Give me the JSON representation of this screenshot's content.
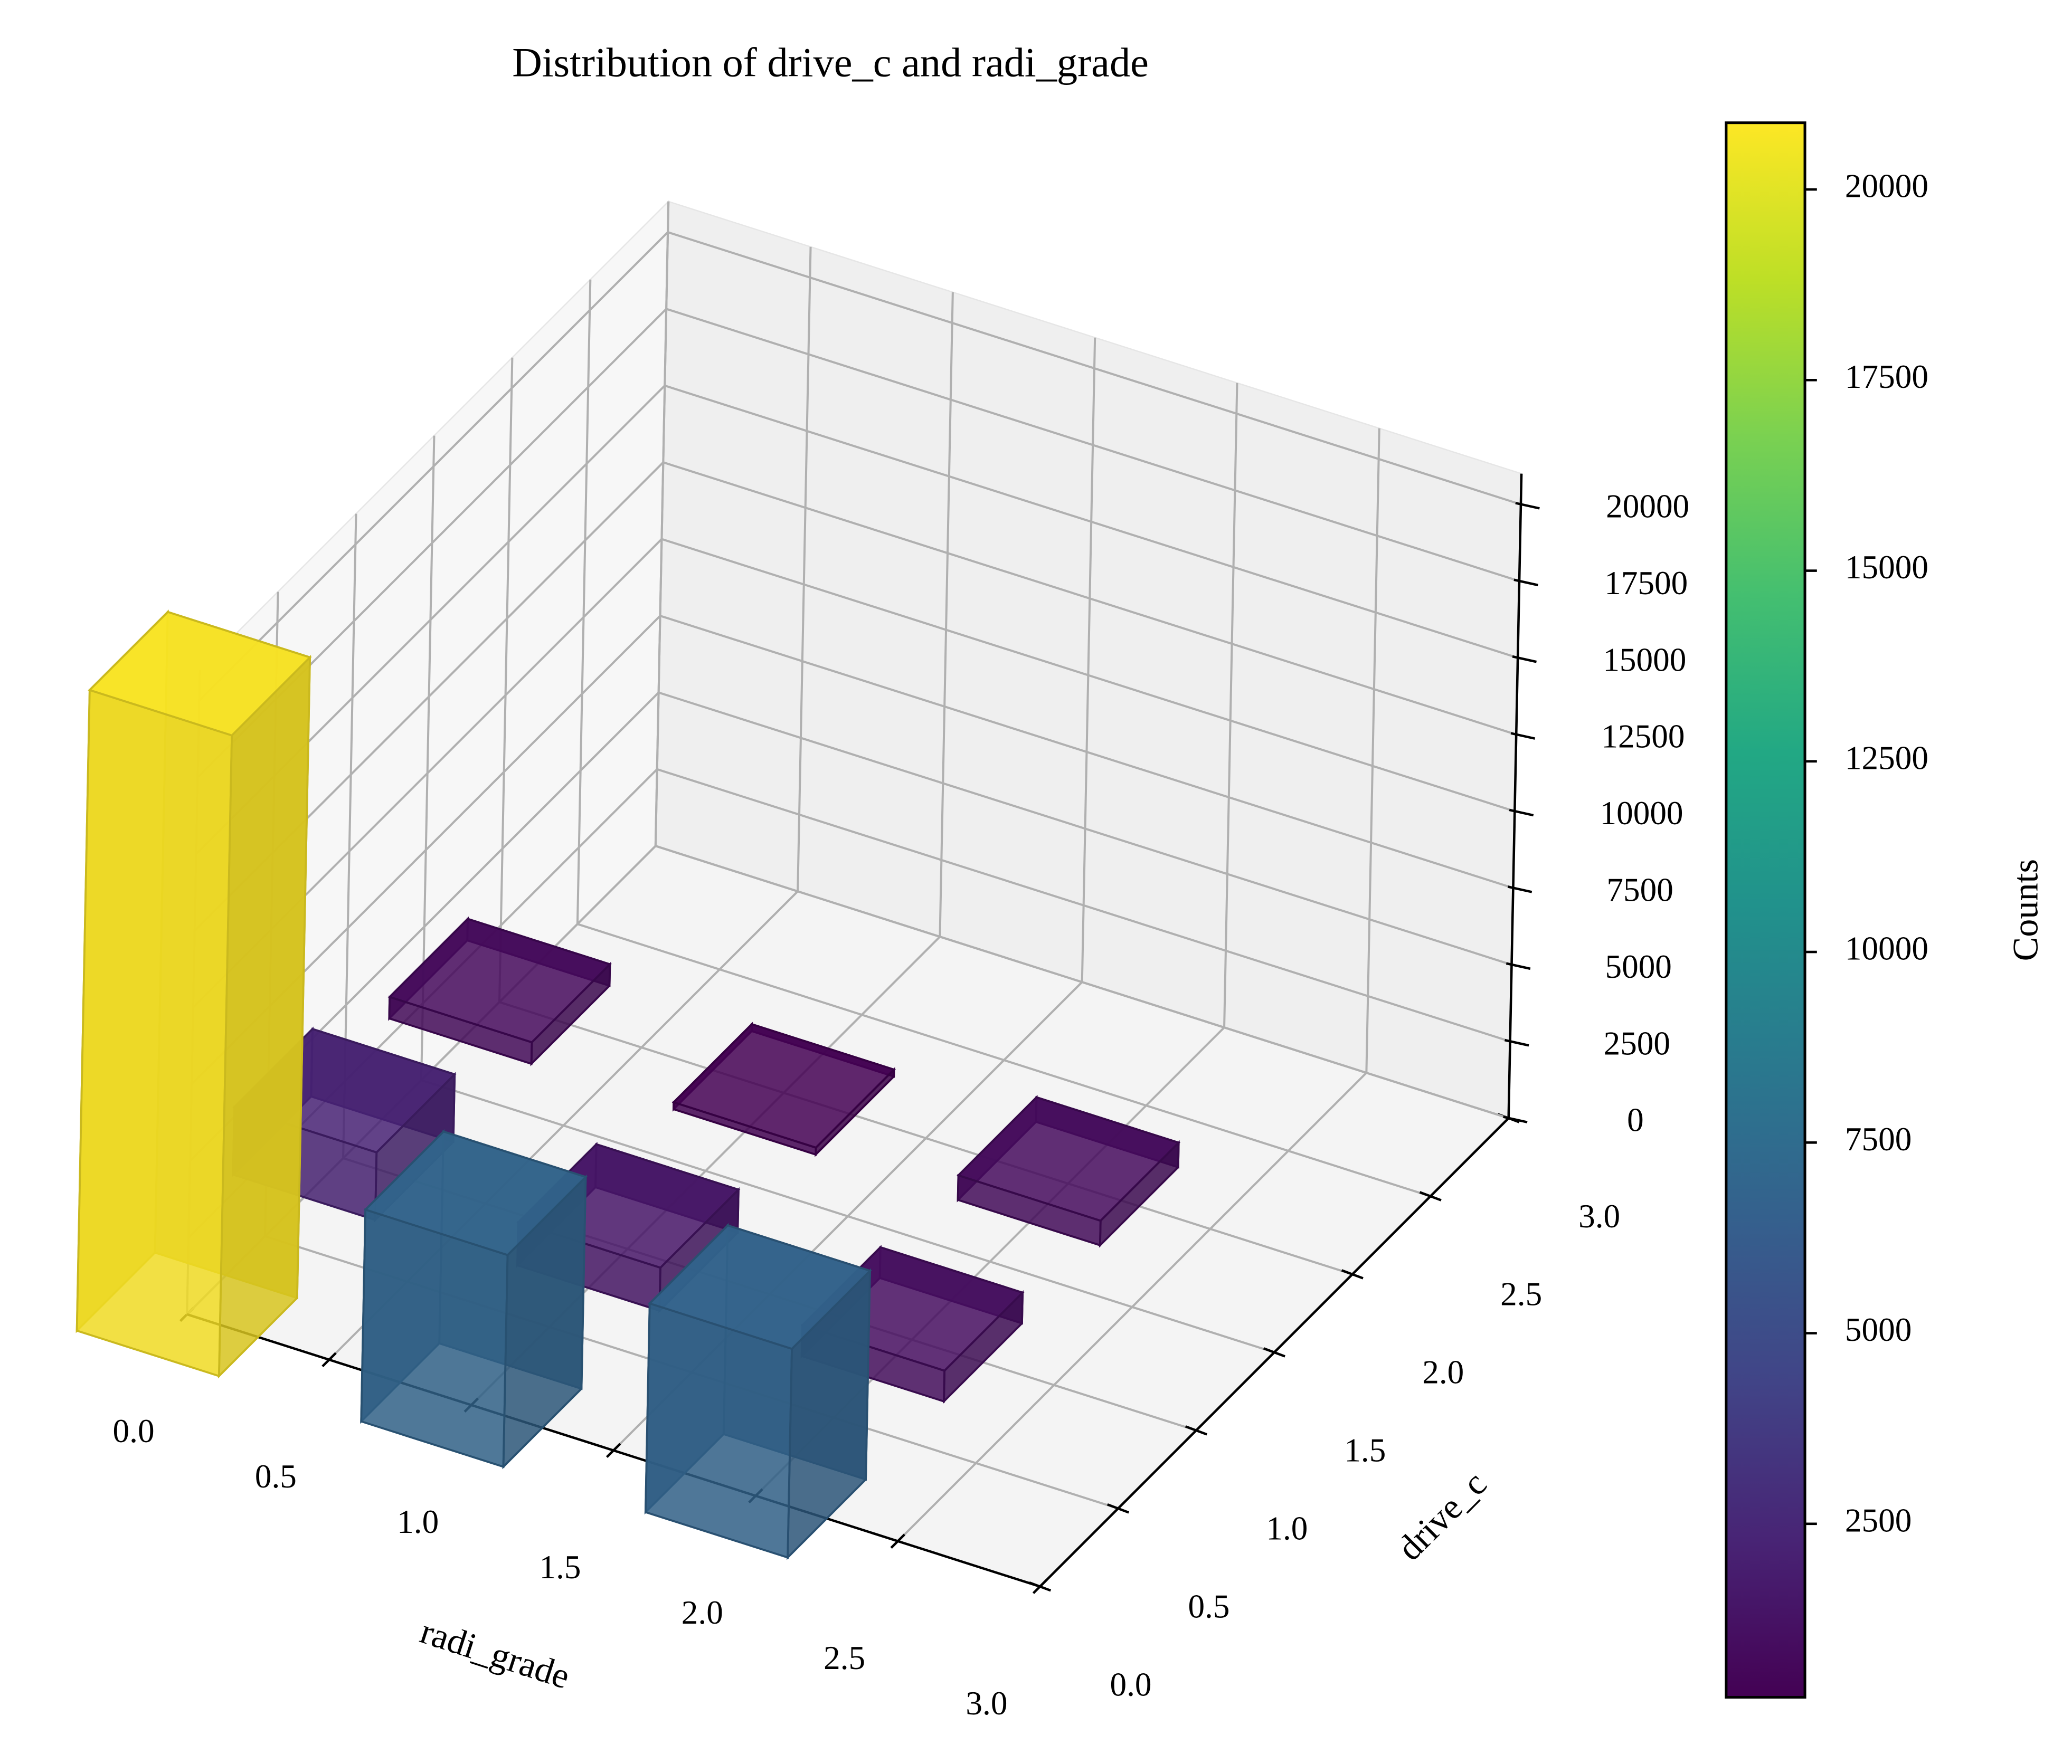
{
  "chart_data": {
    "type": "bar3d",
    "title": "Distribution of drive_c and radi_grade",
    "xlabel": "radi_grade",
    "ylabel": "drive_c",
    "x": [
      0,
      1,
      2,
      0,
      1,
      2,
      0,
      1,
      2
    ],
    "y": [
      0,
      0,
      0,
      1,
      1,
      1,
      2,
      2,
      2
    ],
    "values": [
      20875,
      6900,
      6800,
      2200,
      1400,
      1000,
      700,
      225,
      800
    ],
    "colormap": "viridis",
    "xlim": [
      0,
      3
    ],
    "xticks": [
      {
        "value": 0,
        "label": "0.0"
      },
      {
        "value": 0.5,
        "label": "0.5"
      },
      {
        "value": 1,
        "label": "1.0"
      },
      {
        "value": 1.5,
        "label": "1.5"
      },
      {
        "value": 2,
        "label": "2.0"
      },
      {
        "value": 2.5,
        "label": "2.5"
      },
      {
        "value": 3,
        "label": "3.0"
      }
    ],
    "ylim": [
      0,
      3
    ],
    "yticks": [
      {
        "value": 0,
        "label": "0.0"
      },
      {
        "value": 0.5,
        "label": "0.5"
      },
      {
        "value": 1,
        "label": "1.0"
      },
      {
        "value": 1.5,
        "label": "1.5"
      },
      {
        "value": 2,
        "label": "2.0"
      },
      {
        "value": 2.5,
        "label": "2.5"
      },
      {
        "value": 3,
        "label": "3.0"
      }
    ],
    "zlim": [
      0,
      21000
    ],
    "zticks": [
      0,
      2500,
      5000,
      7500,
      10000,
      12500,
      15000,
      17500,
      20000
    ],
    "grid": true,
    "colorbar": {
      "label": "Counts",
      "clim": [
        225,
        20875
      ],
      "ticks": [
        2500,
        5000,
        7500,
        10000,
        12500,
        15000,
        17500,
        20000
      ]
    }
  }
}
